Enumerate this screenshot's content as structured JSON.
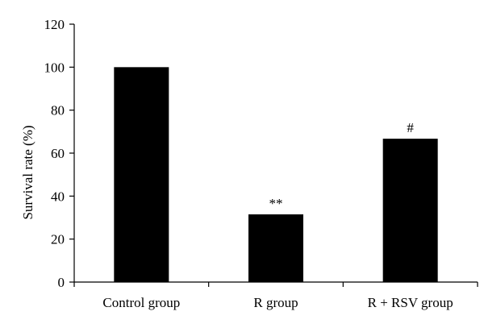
{
  "chart_data": {
    "type": "bar",
    "title": "",
    "xlabel": "",
    "ylabel": "Survival rate (%)",
    "categories": [
      "Control group",
      "R group",
      "R + RSV group"
    ],
    "values": [
      100,
      31.5,
      66.7
    ],
    "annotations": [
      "",
      "**",
      "#"
    ],
    "ylim": [
      0,
      120
    ],
    "yticks": [
      0,
      20,
      40,
      60,
      80,
      100,
      120
    ],
    "grid": false,
    "legend": "none",
    "bar_color": "#000000"
  }
}
